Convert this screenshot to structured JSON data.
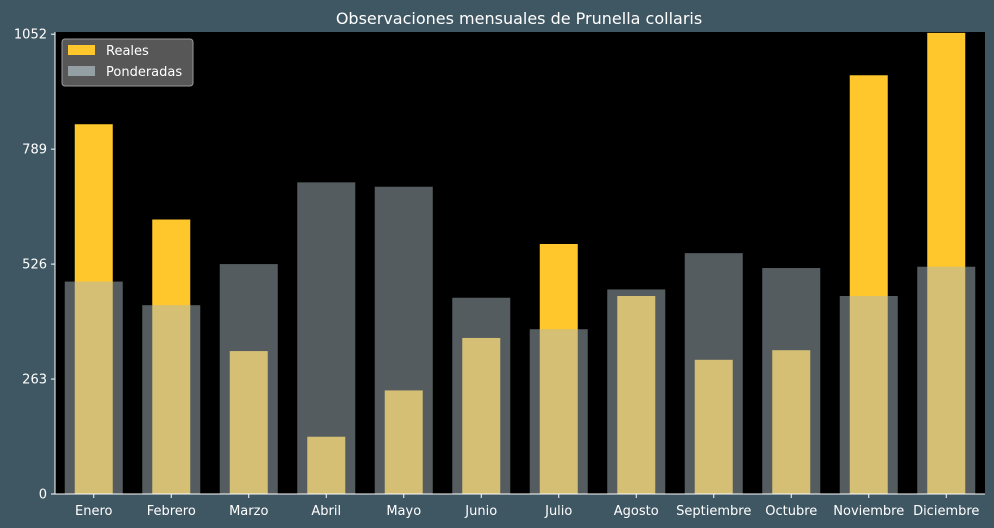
{
  "chart_data": {
    "type": "bar",
    "title": "Observaciones mensuales de Prunella collaris",
    "xlabel": "",
    "ylabel": "",
    "categories": [
      "Enero",
      "Febrero",
      "Marzo",
      "Abril",
      "Mayo",
      "Junio",
      "Julio",
      "Agosto",
      "Septiembre",
      "Octubre",
      "Noviembre",
      "Diciembre"
    ],
    "series": [
      {
        "name": "Reales",
        "values": [
          846,
          628,
          327,
          131,
          237,
          357,
          572,
          453,
          307,
          329,
          958,
          1055
        ]
      },
      {
        "name": "Ponderadas",
        "values": [
          486,
          432,
          526,
          713,
          703,
          449,
          377,
          468,
          551,
          517,
          453,
          520
        ]
      }
    ],
    "yticks": [
      0,
      263,
      526,
      789,
      1052
    ],
    "ylim": [
      0,
      1057
    ],
    "legend_position": "top-left",
    "grid": false,
    "colors": {
      "figure_background": "#3f5663",
      "plot_background": "#000000",
      "reales": "#ffc72c",
      "ponderadas": "#aab8bd",
      "text": "#ffffff"
    }
  }
}
